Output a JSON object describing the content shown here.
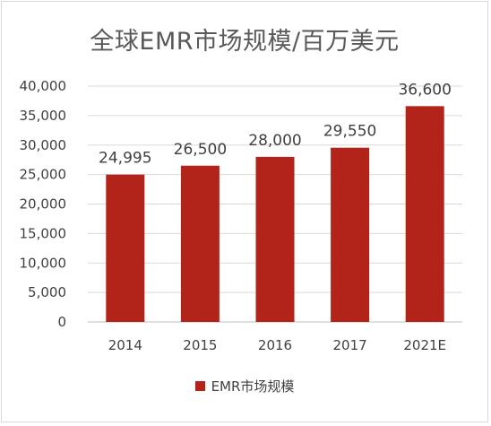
{
  "chart_data": {
    "type": "bar",
    "title": "全球EMR市场规模/百万美元",
    "categories": [
      "2014",
      "2015",
      "2016",
      "2017",
      "2021E"
    ],
    "series": [
      {
        "name": "EMR市场规模",
        "values": [
          24995,
          26500,
          28000,
          29550,
          36600
        ]
      }
    ],
    "data_labels": [
      "24,995",
      "26,500",
      "28,000",
      "29,550",
      "36,600"
    ],
    "y_ticks": [
      "0",
      "5,000",
      "10,000",
      "15,000",
      "20,000",
      "25,000",
      "30,000",
      "35,000",
      "40,000"
    ],
    "ylim": [
      0,
      40000
    ],
    "grid": true,
    "legend": "bottom",
    "colors": {
      "bar": "#b2231a",
      "grid": "#d9d9d9",
      "text": "#404040",
      "title": "#595959"
    }
  }
}
